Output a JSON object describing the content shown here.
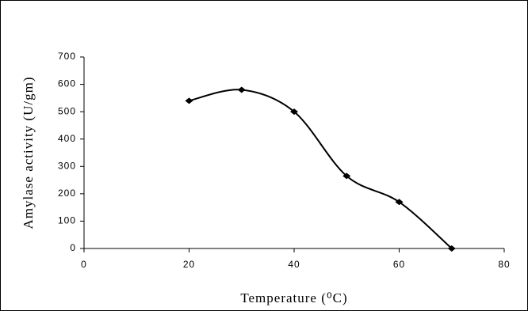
{
  "chart_data": {
    "type": "line",
    "xlabel": "Temperature (⁰C)",
    "ylabel": "Amylase activity (U/gm)",
    "x": [
      20,
      30,
      40,
      50,
      60,
      70
    ],
    "series": [
      {
        "color": "#000000",
        "values": [
          540,
          580,
          500,
          265,
          170,
          0
        ]
      }
    ],
    "xlim": [
      0,
      80
    ],
    "xticks": [
      0,
      20,
      40,
      60,
      80
    ],
    "ylim": [
      0,
      700
    ],
    "yticks": [
      0,
      100,
      200,
      300,
      400,
      500,
      600,
      700
    ],
    "smooth": true
  }
}
